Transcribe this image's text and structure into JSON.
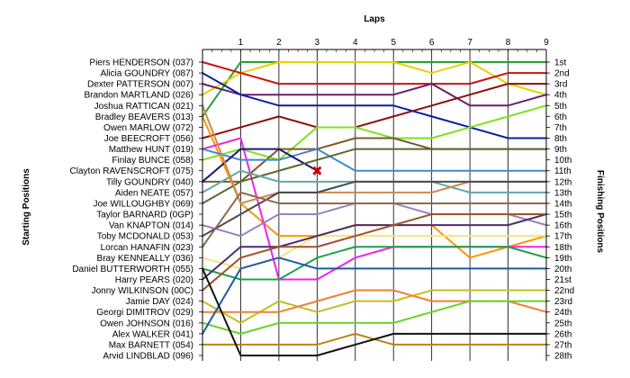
{
  "chart_data": {
    "type": "line",
    "subtype": "lap chart (position by lap)",
    "title": "",
    "xlabel": "Laps",
    "ylabel_left": "Starting Positions",
    "ylabel_right": "Finishing Positions",
    "x_ticks": [
      "1",
      "2",
      "3",
      "4",
      "5",
      "6",
      "7",
      "8",
      "9"
    ],
    "x_range": [
      0,
      9
    ],
    "y_range": [
      1,
      28
    ],
    "y_axis_reversed": true,
    "grid": "vertical lines at each lap",
    "start_labels": [
      "Piers HENDERSON (037)",
      "Alicia GOUNDRY (087)",
      "Dexter PATTERSON (007)",
      "Brandon MARTLAND (026)",
      "Joshua RATTICAN (021)",
      "Bradley BEAVERS (013)",
      "Owen MARLOW (072)",
      "Joe BEECROFT (056)",
      "Matthew HUNT (019)",
      "Finlay BUNCE (058)",
      "Clayton RAVENSCROFT (075)",
      "Tilly GOUNDRY (040)",
      "Aiden NEATE (057)",
      "Joe WILLOUGHBY (069)",
      "Taylor BARNARD (0GP)",
      "Van KNAPTON (014)",
      "Toby MCDONALD (053)",
      "Lorcan HANAFIN (023)",
      "Bray KENNEALLY (036)",
      "Daniel BUTTERWORTH (055)",
      "Harry PEARS (020)",
      "Jonny WILKINSON (00C)",
      "Jamie DAY (024)",
      "Georgi DIMITROV (029)",
      "Owen JOHNSON (016)",
      "Alex WALKER (041)",
      "Max BARNETT (054)",
      "Arvid LINDBLAD (096)"
    ],
    "finish_labels": [
      "1st",
      "2nd",
      "3rd",
      "4th",
      "5th",
      "6th",
      "7th",
      "8th",
      "9th",
      "10th",
      "11th",
      "12th",
      "13th",
      "14th",
      "15th",
      "16th",
      "17th",
      "18th",
      "19th",
      "20th",
      "21st",
      "22nd",
      "23rd",
      "24th",
      "25th",
      "26th",
      "27th",
      "28th"
    ],
    "series": [
      {
        "color": "#2ca02c",
        "values": [
          6,
          1,
          1,
          1,
          1,
          1,
          1,
          1,
          1,
          1
        ]
      },
      {
        "color": "#e8d000",
        "values": [
          4,
          2,
          1,
          1,
          1,
          1,
          2,
          1,
          3,
          4
        ]
      },
      {
        "color": "#cc1111",
        "values": [
          1,
          2,
          3,
          3,
          3,
          3,
          3,
          3,
          2,
          2
        ]
      },
      {
        "color": "#6b1f6b",
        "values": [
          3,
          4,
          4,
          4,
          4,
          4,
          3,
          5,
          5,
          4
        ]
      },
      {
        "color": "#0b1fa0",
        "values": [
          2,
          4,
          5,
          5,
          5,
          5,
          6,
          7,
          8,
          8
        ]
      },
      {
        "color": "#8b0f0f",
        "values": [
          8,
          7,
          6,
          7,
          7,
          6,
          5,
          4,
          3,
          3
        ]
      },
      {
        "color": "#7fe020",
        "values": [
          10,
          9,
          10,
          7,
          7,
          8,
          8,
          7,
          6,
          5
        ]
      },
      {
        "color": "#7a5a2a",
        "values": [
          12,
          12,
          9,
          9,
          8,
          8,
          9,
          9,
          9,
          9
        ]
      },
      {
        "color": "#ff9500",
        "values": [
          6,
          14,
          17,
          17,
          16,
          16,
          16,
          19,
          18,
          17
        ]
      },
      {
        "color": "#ee22ee",
        "values": [
          9,
          8,
          21,
          21,
          19,
          18,
          18,
          18,
          18,
          18
        ]
      },
      {
        "color": "#3e88d0",
        "values": [
          9,
          10,
          10,
          9,
          11,
          11,
          11,
          11,
          11,
          11
        ]
      },
      {
        "color": "#1a1a7a",
        "values": [
          12,
          9,
          9,
          11
        ]
      },
      {
        "color": "#556b2f",
        "values": [
          14,
          12,
          11,
          10,
          9,
          9,
          9,
          9,
          9,
          9
        ]
      },
      {
        "color": "#5fa8a8",
        "values": [
          13,
          11,
          12,
          12,
          12,
          12,
          12,
          13,
          13,
          13
        ]
      },
      {
        "color": "#cc8a52",
        "values": [
          5,
          14,
          13,
          13,
          13,
          13,
          13,
          12,
          12,
          12
        ]
      },
      {
        "color": "#9a80c0",
        "values": [
          16,
          17,
          15,
          15,
          14,
          14,
          15,
          15,
          15,
          16
        ]
      },
      {
        "color": "#4a4a4a",
        "values": [
          17,
          15,
          13,
          13,
          12,
          12,
          12,
          12,
          12,
          12
        ]
      },
      {
        "color": "#8f6a48",
        "values": [
          18,
          13,
          14,
          14,
          14,
          14,
          14,
          14,
          14,
          14
        ]
      },
      {
        "color": "#f4e47a",
        "values": [
          19,
          20,
          19,
          17,
          17,
          17,
          17,
          17,
          17,
          17
        ]
      },
      {
        "color": "#1ea04a",
        "values": [
          20,
          21,
          21,
          19,
          18,
          18,
          18,
          18,
          18,
          19
        ]
      },
      {
        "color": "#4d2d6b",
        "values": [
          21,
          18,
          18,
          17,
          16,
          16,
          16,
          16,
          16,
          15
        ]
      },
      {
        "color": "#a0522d",
        "values": [
          22,
          19,
          18,
          18,
          17,
          16,
          15,
          15,
          15,
          15
        ]
      },
      {
        "color": "#c0c020",
        "values": [
          23,
          25,
          23,
          24,
          23,
          23,
          22,
          22,
          22,
          22
        ]
      },
      {
        "color": "#f08030",
        "values": [
          24,
          24,
          24,
          23,
          22,
          22,
          23,
          23,
          23,
          24
        ]
      },
      {
        "color": "#6ad028",
        "values": [
          25,
          26,
          25,
          25,
          25,
          25,
          24,
          23,
          23,
          23
        ]
      },
      {
        "color": "#1e5aa8",
        "values": [
          26,
          20,
          19,
          20,
          20,
          20,
          20,
          20,
          20,
          20
        ]
      },
      {
        "color": "#b8860b",
        "values": [
          27,
          27,
          27,
          27,
          26,
          27,
          27,
          27,
          27,
          27
        ]
      },
      {
        "color": "#111111",
        "values": [
          20,
          28,
          28,
          28,
          27,
          26,
          26,
          26,
          26,
          26
        ]
      }
    ],
    "retired_marker": {
      "lap": 3,
      "position": 11,
      "symbol": "x",
      "color": "#cc0000"
    }
  }
}
